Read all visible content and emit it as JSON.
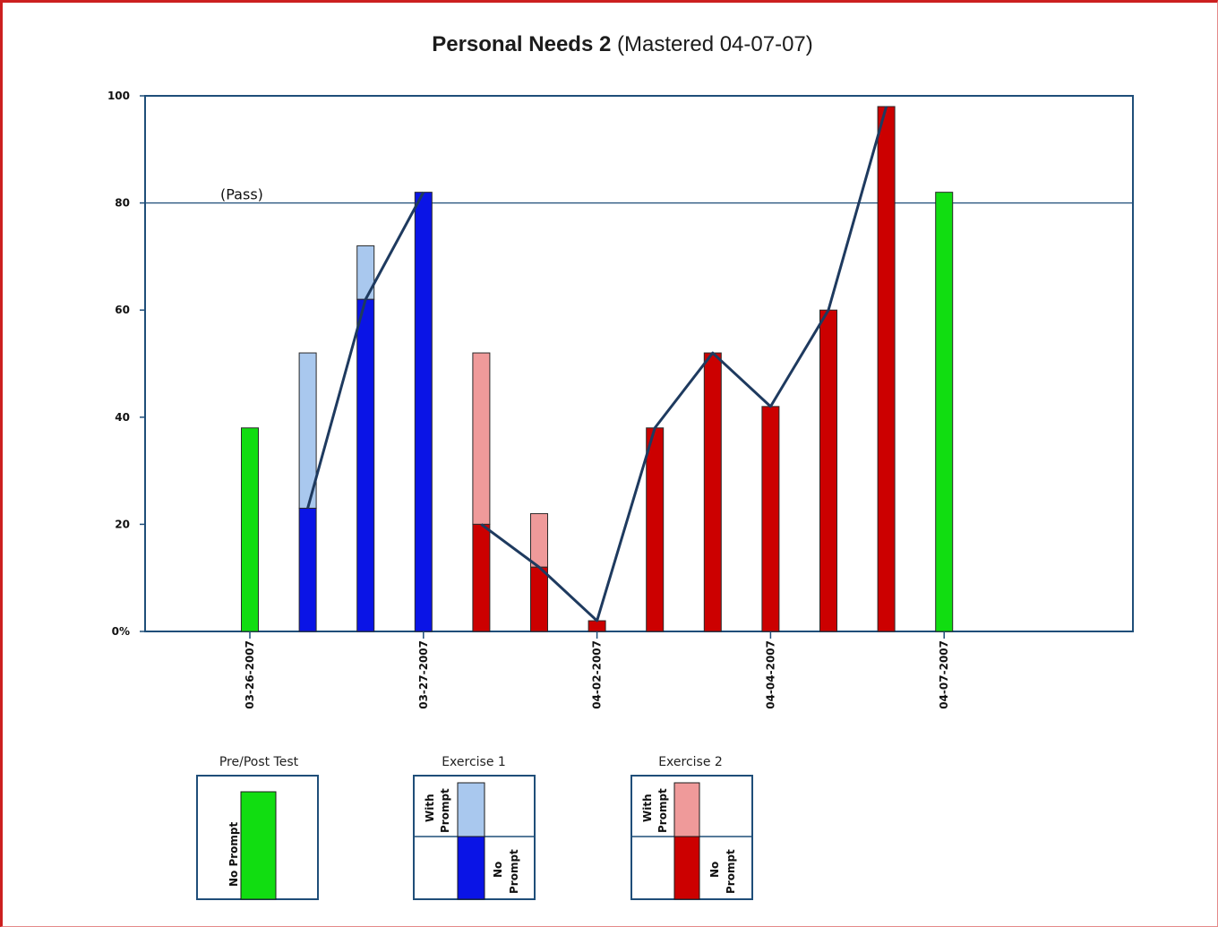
{
  "title_main": "Personal Needs 2",
  "title_sub": "(Mastered 04-07-07)",
  "pass_label": "(Pass)",
  "colors": {
    "axis": "#1f4e79",
    "line": "#1e3a5f",
    "pre_post": "#11dd11",
    "ex1_with_prompt": "#a9c8ee",
    "ex1_no_prompt": "#0a14e6",
    "ex2_with_prompt": "#ef9a9a",
    "ex2_no_prompt": "#cc0000"
  },
  "chart_data": {
    "type": "bar",
    "title": "Personal Needs 2 (Mastered 04-07-07)",
    "xlabel": "",
    "ylabel": "",
    "ylim": [
      0,
      100
    ],
    "y_ticks": [
      "0%",
      "20",
      "40",
      "60",
      "80",
      "100"
    ],
    "y_tick_values": [
      0,
      20,
      40,
      60,
      80,
      100
    ],
    "x_tick_labels": [
      "03-26-2007",
      "03-27-2007",
      "04-02-2007",
      "04-04-2007",
      "04-07-2007"
    ],
    "x_tick_bar_index": [
      0,
      3,
      6,
      9,
      12
    ],
    "pass_threshold": 80,
    "grid": false,
    "bars": [
      {
        "group": "Pre/Post Test",
        "no_prompt": 38
      },
      {
        "group": "Exercise 1",
        "no_prompt": 23,
        "with_prompt": 52
      },
      {
        "group": "Exercise 1",
        "no_prompt": 62,
        "with_prompt": 72
      },
      {
        "group": "Exercise 1",
        "no_prompt": 82
      },
      {
        "group": "Exercise 2",
        "no_prompt": 20,
        "with_prompt": 52
      },
      {
        "group": "Exercise 2",
        "no_prompt": 12,
        "with_prompt": 22
      },
      {
        "group": "Exercise 2",
        "no_prompt": 2
      },
      {
        "group": "Exercise 2",
        "no_prompt": 38
      },
      {
        "group": "Exercise 2",
        "no_prompt": 52
      },
      {
        "group": "Exercise 2",
        "no_prompt": 42
      },
      {
        "group": "Exercise 2",
        "no_prompt": 60
      },
      {
        "group": "Exercise 2",
        "no_prompt": 98
      },
      {
        "group": "Pre/Post Test",
        "no_prompt": 82
      }
    ],
    "trend_lines": [
      {
        "bar_index": [
          1,
          2,
          3
        ],
        "values": [
          23,
          62,
          82
        ]
      },
      {
        "bar_index": [
          4,
          5,
          6,
          7,
          8,
          9,
          10,
          11
        ],
        "values": [
          20,
          12,
          2,
          38,
          52,
          42,
          60,
          98
        ]
      }
    ]
  },
  "legend": [
    {
      "title": "Pre/Post Test",
      "labels": [
        "No Prompt"
      ]
    },
    {
      "title": "Exercise 1",
      "labels": [
        "With",
        "Prompt",
        "No",
        "Prompt"
      ]
    },
    {
      "title": "Exercise 2",
      "labels": [
        "With",
        "Prompt",
        "No",
        "Prompt"
      ]
    }
  ]
}
